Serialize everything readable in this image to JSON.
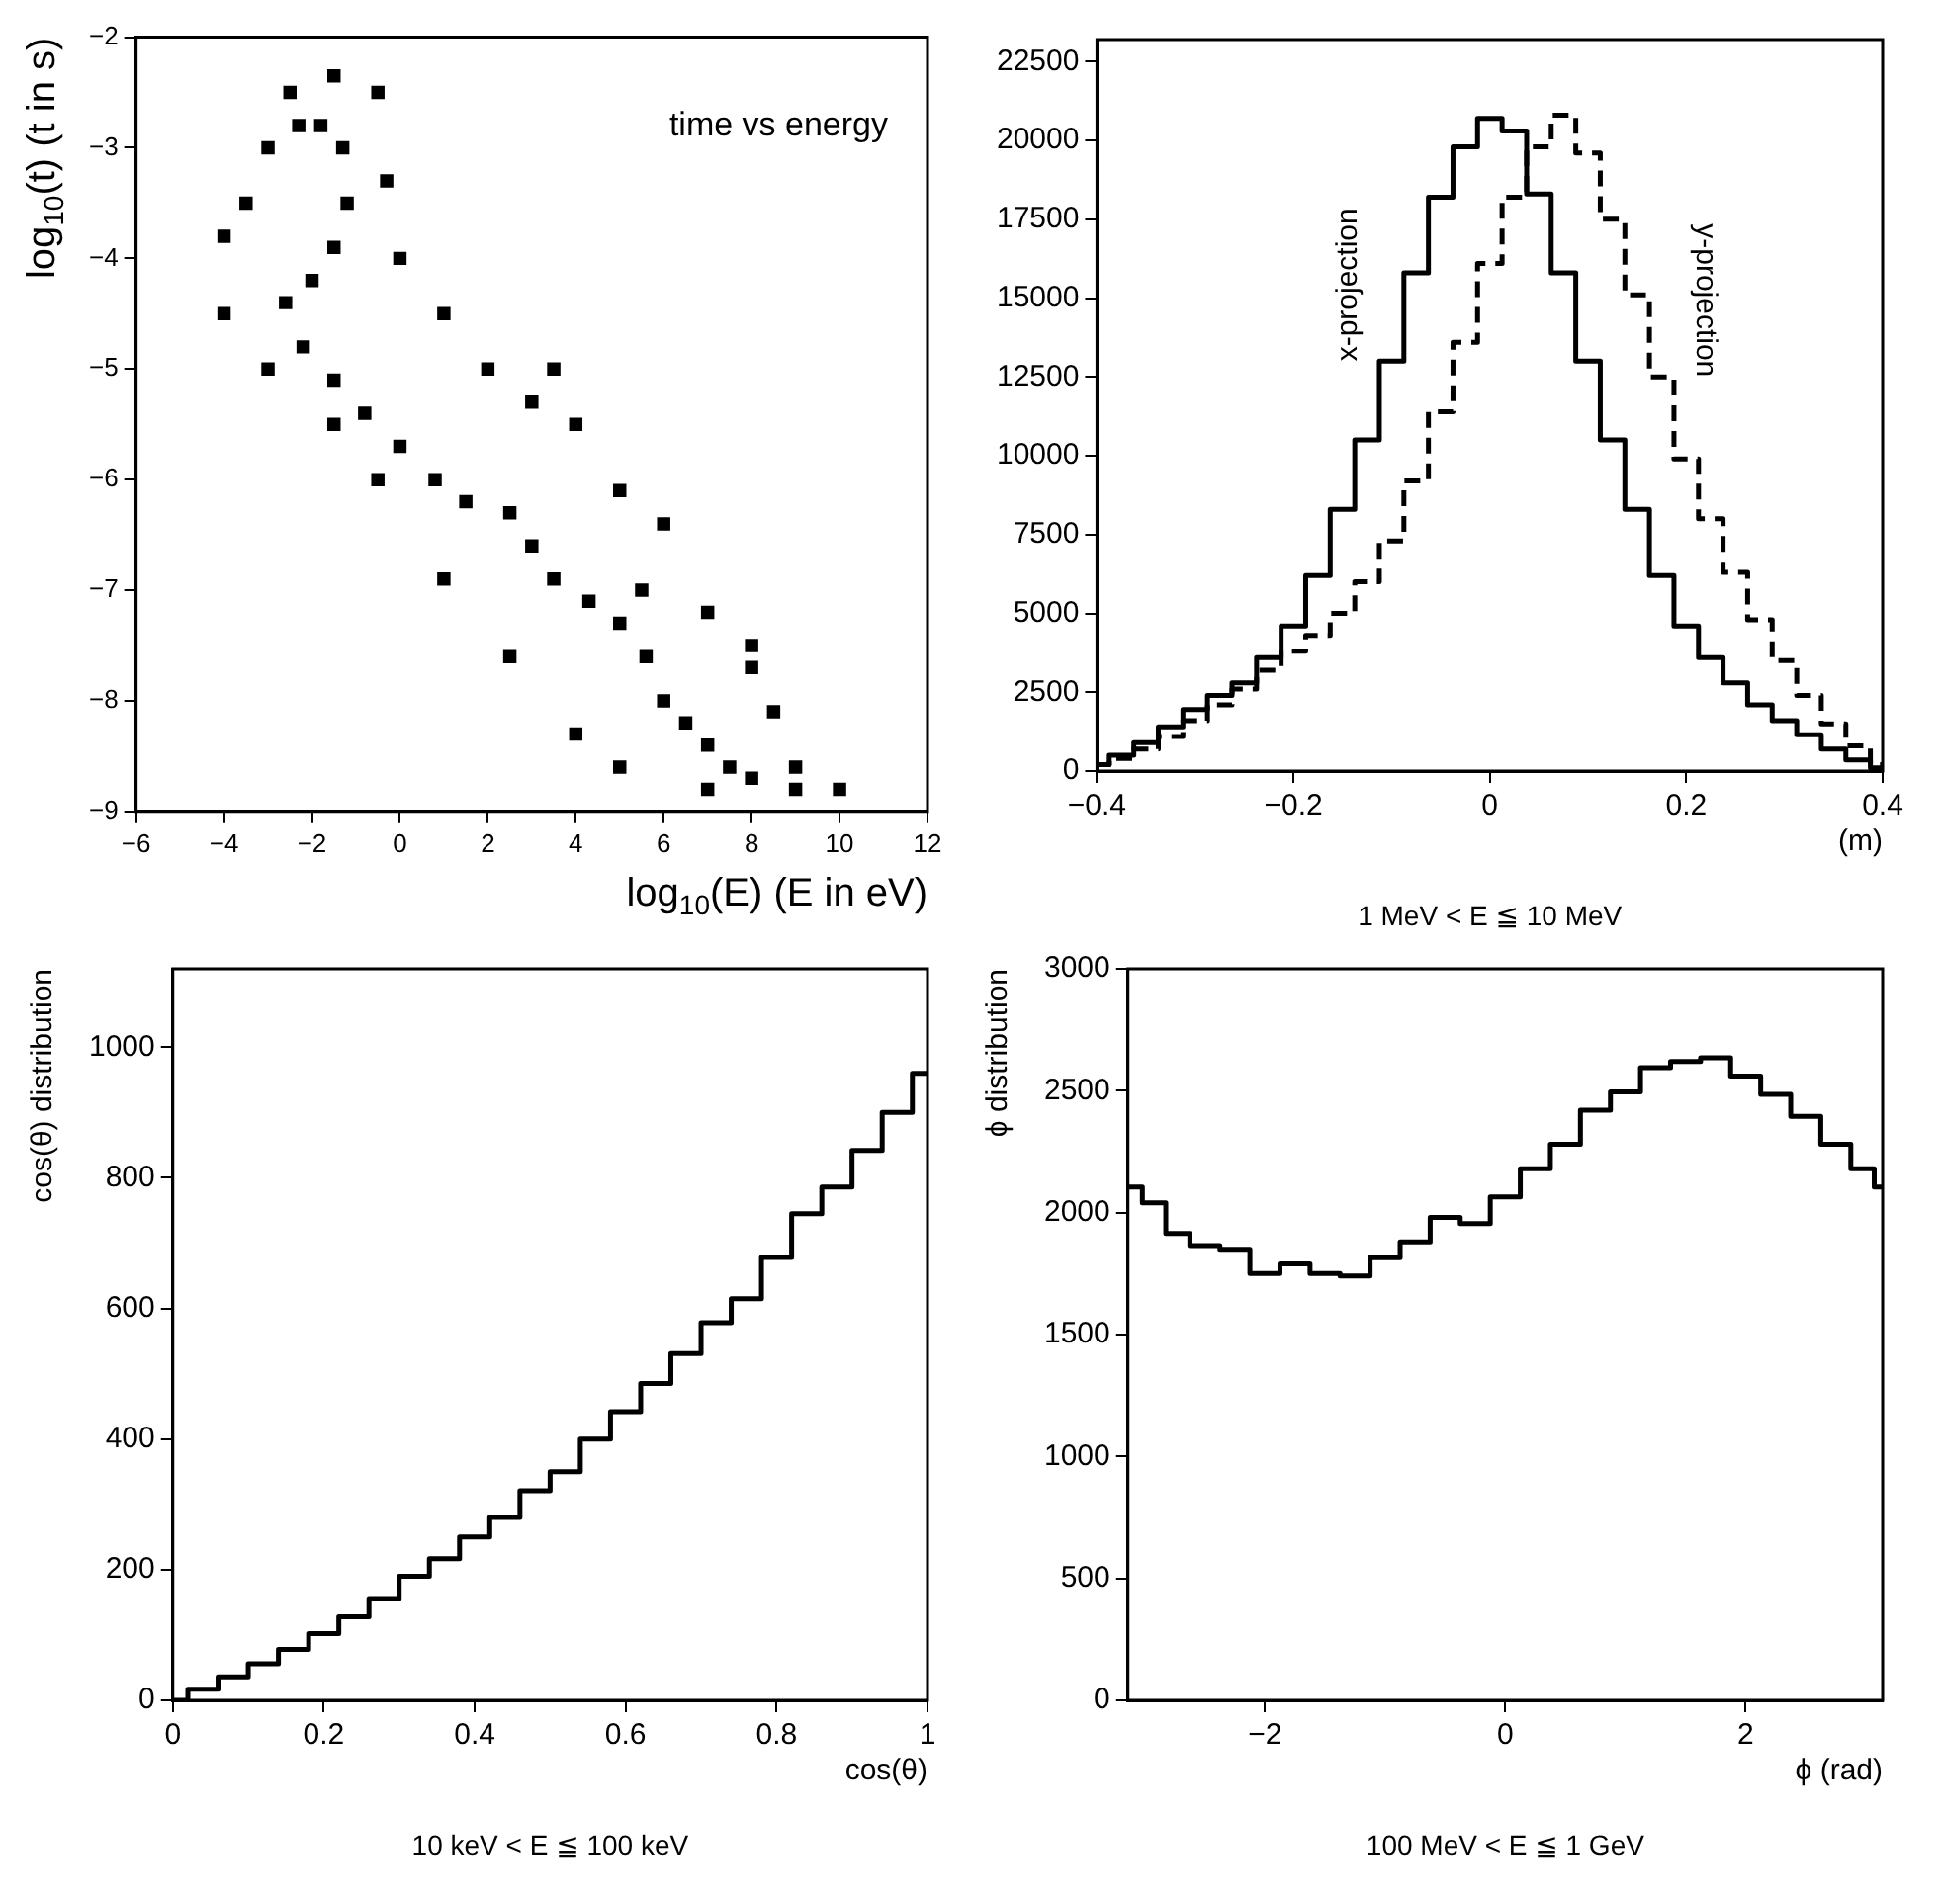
{
  "chart_data": [
    {
      "type": "scatter",
      "title": "time vs energy",
      "xlabel": "log$_{10}$(E) (E in eV)",
      "ylabel": "log$_{10}$(t) (t in s)",
      "xlim": [
        -6,
        12
      ],
      "ylim": [
        -9,
        -2
      ],
      "xticks": [
        -6,
        -4,
        -2,
        0,
        2,
        4,
        6,
        8,
        10,
        12
      ],
      "yticks": [
        -9,
        -8,
        -7,
        -6,
        -5,
        -4,
        -3,
        -2
      ],
      "marker": "square",
      "series": [
        {
          "color": "#000000",
          "x": [
            -2.3,
            -1.8,
            -1.3,
            -1.2,
            -1.5,
            -2,
            -2.6,
            -2.2,
            -1.5,
            -0.8,
            0,
            0.8,
            1.5,
            2.5,
            3,
            3.5,
            4.3,
            5,
            5.5,
            5.6,
            6,
            6.5,
            7,
            7.5,
            8,
            9,
            10,
            -4,
            -3.5,
            -3,
            -2.5,
            -1.5,
            -0.5,
            -0.3,
            0,
            1,
            2,
            3,
            4,
            5,
            6,
            7,
            8,
            8.5,
            9,
            7,
            5,
            4,
            2.5,
            1,
            -0.5,
            -1.5,
            -3,
            -4,
            3.5,
            8
          ],
          "values": [
            -2.8,
            -2.8,
            -3,
            -3.5,
            -3.9,
            -4.2,
            -4.4,
            -4.8,
            -5.1,
            -5.4,
            -5.7,
            -6,
            -6.2,
            -6.3,
            -6.6,
            -6.9,
            -7.1,
            -7.3,
            -7,
            -7.6,
            -8,
            -8.2,
            -8.4,
            -8.6,
            -8.7,
            -8.8,
            -8.8,
            -3.8,
            -3.5,
            -3,
            -2.5,
            -2.35,
            -2.5,
            -3.3,
            -4,
            -4.5,
            -5,
            -5.3,
            -5.5,
            -6.1,
            -6.4,
            -7.2,
            -7.7,
            -8.1,
            -8.6,
            -8.8,
            -8.6,
            -8.3,
            -7.6,
            -6.9,
            -6,
            -5.5,
            -5,
            -4.5,
            -5,
            -7.5
          ]
        }
      ]
    },
    {
      "type": "step",
      "xlabel": "(m)",
      "annotations": [
        "1 MeV < E ≦ 10 MeV"
      ],
      "xlim": [
        -0.4,
        0.4
      ],
      "ylim": [
        0,
        23200
      ],
      "xticks": [
        -0.4,
        -0.2,
        0,
        0.2,
        0.4
      ],
      "yticks": [
        0,
        2500,
        5000,
        7500,
        10000,
        12500,
        15000,
        17500,
        20000,
        22500
      ],
      "x": [
        -0.4,
        -0.375,
        -0.35,
        -0.325,
        -0.3,
        -0.275,
        -0.25,
        -0.225,
        -0.2,
        -0.175,
        -0.15,
        -0.125,
        -0.1,
        -0.075,
        -0.05,
        -0.025,
        0,
        0.025,
        0.05,
        0.075,
        0.1,
        0.125,
        0.15,
        0.175,
        0.2,
        0.225,
        0.25,
        0.275,
        0.3,
        0.325,
        0.35,
        0.375,
        0.4
      ],
      "series": [
        {
          "name": "x-projection",
          "color": "#000000",
          "line_style": "solid",
          "values": [
            200,
            500,
            900,
            1400,
            1950,
            2400,
            2800,
            3600,
            4600,
            6200,
            8300,
            10500,
            13000,
            15800,
            18200,
            19800,
            20700,
            20300,
            18300,
            15800,
            13000,
            10500,
            8300,
            6200,
            4600,
            3600,
            2800,
            2100,
            1600,
            1150,
            700,
            350,
            100
          ]
        },
        {
          "name": "y-projection",
          "color": "#000000",
          "line_style": "dashed",
          "values": [
            200,
            400,
            700,
            1100,
            1600,
            2100,
            2600,
            3200,
            3800,
            4300,
            5000,
            6000,
            7300,
            9200,
            11400,
            13600,
            16100,
            18200,
            19800,
            20800,
            19600,
            17500,
            15100,
            12500,
            9900,
            8000,
            6300,
            4800,
            3500,
            2400,
            1500,
            800,
            200
          ]
        }
      ]
    },
    {
      "type": "step",
      "xlabel": "cos(θ)",
      "ylabel": "cos(θ) distribution",
      "annotations": [
        "10 keV < E ≦ 100 keV"
      ],
      "xlim": [
        0,
        1
      ],
      "ylim": [
        0,
        1120
      ],
      "xticks": [
        0,
        0.2,
        0.4,
        0.6,
        0.8,
        1
      ],
      "yticks": [
        0,
        200,
        400,
        600,
        800,
        1000
      ],
      "x": [
        0,
        0.04,
        0.08,
        0.12,
        0.16,
        0.2,
        0.24,
        0.28,
        0.32,
        0.36,
        0.4,
        0.44,
        0.48,
        0.52,
        0.56,
        0.6,
        0.64,
        0.68,
        0.72,
        0.76,
        0.8,
        0.84,
        0.88,
        0.92,
        0.96,
        1
      ],
      "series": [
        {
          "color": "#000000",
          "values": [
            0,
            17,
            36,
            56,
            78,
            102,
            128,
            156,
            190,
            217,
            250,
            280,
            321,
            350,
            400,
            442,
            485,
            531,
            578,
            615,
            678,
            745,
            786,
            842,
            900,
            960
          ]
        }
      ]
    },
    {
      "type": "step",
      "xlabel": "ϕ (rad)",
      "ylabel": "ϕ distribution",
      "annotations": [
        "100 MeV < E ≦ 1 GeV"
      ],
      "xlim": [
        -3.14,
        3.14
      ],
      "ylim": [
        0,
        3000
      ],
      "xticks": [
        -2,
        0,
        2
      ],
      "yticks": [
        0,
        500,
        1000,
        1500,
        2000,
        2500,
        3000
      ],
      "x": [
        -3.14,
        -2.9,
        -2.75,
        -2.5,
        -2.25,
        -2,
        -1.75,
        -1.5,
        -1.25,
        -1,
        -0.75,
        -0.5,
        -0.25,
        0,
        0.25,
        0.5,
        0.75,
        1,
        1.25,
        1.5,
        1.75,
        2,
        2.25,
        2.5,
        2.75,
        3,
        3.14
      ],
      "series": [
        {
          "color": "#000000",
          "values": [
            2105,
            2040,
            1915,
            1865,
            1850,
            1750,
            1790,
            1750,
            1740,
            1815,
            1880,
            1980,
            1955,
            2065,
            2180,
            2280,
            2420,
            2495,
            2595,
            2620,
            2635,
            2560,
            2485,
            2395,
            2280,
            2180,
            2105
          ]
        }
      ]
    }
  ]
}
